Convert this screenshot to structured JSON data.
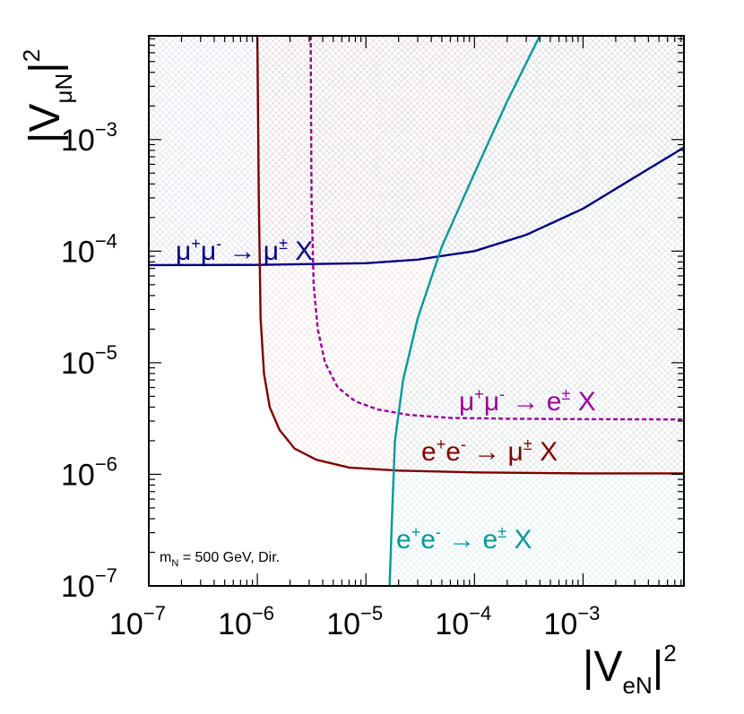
{
  "chart_data": {
    "type": "line",
    "x_axis": {
      "label_base": "|V",
      "label_sub": "eN",
      "label_tail": "|",
      "label_sup": "2",
      "scale": "log",
      "lim": [
        1e-07,
        0.0085
      ],
      "ticks": [
        {
          "value": 1e-07,
          "base": "10",
          "exp": "−7"
        },
        {
          "value": 1e-06,
          "base": "10",
          "exp": "−6"
        },
        {
          "value": 1e-05,
          "base": "10",
          "exp": "−5"
        },
        {
          "value": 0.0001,
          "base": "10",
          "exp": "−4"
        },
        {
          "value": 0.001,
          "base": "10",
          "exp": "−3"
        }
      ]
    },
    "y_axis": {
      "label_base": "|V",
      "label_sub": "μN",
      "label_tail": "|",
      "label_sup": "2",
      "scale": "log",
      "lim": [
        1e-07,
        0.0085
      ],
      "ticks": [
        {
          "value": 1e-07,
          "base": "10",
          "exp": "−7"
        },
        {
          "value": 1e-06,
          "base": "10",
          "exp": "−6"
        },
        {
          "value": 1e-05,
          "base": "10",
          "exp": "−5"
        },
        {
          "value": 0.0001,
          "base": "10",
          "exp": "−4"
        },
        {
          "value": 0.001,
          "base": "10",
          "exp": "−3"
        }
      ]
    },
    "annotation": {
      "main": "m",
      "sub": "N",
      "rest": " = 500 GeV, Dir."
    },
    "grid": false,
    "legend": "none",
    "series": [
      {
        "name": "μ+μ- → μ± X",
        "color": "#00007f",
        "dash": "solid",
        "shade": "above",
        "x": [
          1e-07,
          1e-06,
          1e-05,
          3e-05,
          0.0001,
          0.0003,
          0.001,
          0.003,
          0.0085
        ],
        "y": [
          7.5e-05,
          7.52e-05,
          7.8e-05,
          8.4e-05,
          0.0001,
          0.00014,
          0.00024,
          0.00046,
          0.00085
        ],
        "label": {
          "parts": [
            [
              "μ",
              ""
            ],
            [
              "+",
              "sup"
            ],
            [
              "μ",
              ""
            ],
            [
              "-",
              "sup"
            ],
            [
              " → μ",
              ""
            ],
            [
              "±",
              "sup"
            ],
            [
              " X",
              ""
            ]
          ]
        }
      },
      {
        "name": "μ+μ- → e± X",
        "color": "#990099",
        "dash": "dashed",
        "shade": "none",
        "x": [
          3.1e-06,
          3.15e-06,
          3.3e-06,
          3.6e-06,
          4.2e-06,
          5.5e-06,
          8e-06,
          1.3e-05,
          2.5e-05,
          6e-05,
          0.0002,
          0.001,
          0.0085
        ],
        "y": [
          0.0085,
          0.0003,
          5e-05,
          2e-05,
          1e-05,
          6e-06,
          4.5e-06,
          3.8e-06,
          3.4e-06,
          3.2e-06,
          3.15e-06,
          3.12e-06,
          3.1e-06
        ],
        "label": {
          "parts": [
            [
              "μ",
              ""
            ],
            [
              "+",
              "sup"
            ],
            [
              "μ",
              ""
            ],
            [
              "-",
              "sup"
            ],
            [
              " → e",
              ""
            ],
            [
              "±",
              "sup"
            ],
            [
              " X",
              ""
            ]
          ]
        }
      },
      {
        "name": "e+e- → μ± X",
        "color": "#7f0000",
        "dash": "solid",
        "shade": "above",
        "x": [
          1e-06,
          1.03e-06,
          1.07e-06,
          1.15e-06,
          1.3e-06,
          1.6e-06,
          2.2e-06,
          3.5e-06,
          7e-06,
          2e-05,
          0.0001,
          0.001,
          0.0085
        ],
        "y": [
          0.0085,
          0.0003,
          2.5e-05,
          8e-06,
          4e-06,
          2.5e-06,
          1.7e-06,
          1.35e-06,
          1.15e-06,
          1.08e-06,
          1.04e-06,
          1.02e-06,
          1.02e-06
        ],
        "label": {
          "parts": [
            [
              "e",
              ""
            ],
            [
              "+",
              "sup"
            ],
            [
              "e",
              ""
            ],
            [
              "-",
              "sup"
            ],
            [
              " → μ",
              ""
            ],
            [
              "±",
              "sup"
            ],
            [
              " X",
              ""
            ]
          ]
        }
      },
      {
        "name": "e+e- → e± X",
        "color": "#009999",
        "dash": "solid",
        "shade": "right",
        "x": [
          1.65e-05,
          1.75e-05,
          1.85e-05,
          2.2e-05,
          3e-05,
          5e-05,
          0.0001,
          0.0002,
          0.0004
        ],
        "y": [
          1e-07,
          5e-07,
          2e-06,
          7e-06,
          2.5e-05,
          0.00011,
          0.0005,
          0.0022,
          0.0085
        ],
        "label": {
          "parts": [
            [
              "e",
              ""
            ],
            [
              "+",
              "sup"
            ],
            [
              "e",
              ""
            ],
            [
              "-",
              "sup"
            ],
            [
              " → e",
              ""
            ],
            [
              "±",
              "sup"
            ],
            [
              " X",
              ""
            ]
          ]
        }
      }
    ]
  }
}
